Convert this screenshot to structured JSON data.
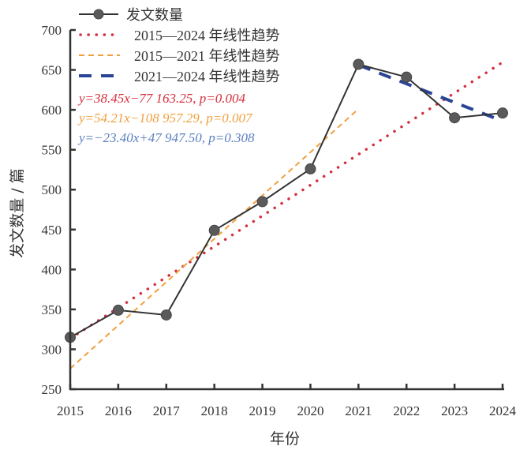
{
  "chart_data": {
    "type": "line",
    "title": "",
    "xlabel": "年份",
    "ylabel": "发文数量 / 篇",
    "ylim": [
      250,
      700
    ],
    "xlim": [
      2015,
      2024
    ],
    "yticks": [
      "250",
      "300",
      "350",
      "400",
      "450",
      "500",
      "550",
      "600",
      "650",
      "700"
    ],
    "xticks": [
      "2015",
      "2016",
      "2017",
      "2018",
      "2019",
      "2020",
      "2021",
      "2022",
      "2023",
      "2024"
    ],
    "grid": false,
    "legend_position": "top-left",
    "x": [
      2015,
      2016,
      2017,
      2018,
      2019,
      2020,
      2021,
      2022,
      2023,
      2024
    ],
    "series": [
      {
        "name": "发文数量",
        "values": [
          315,
          349,
          343,
          449,
          485,
          526,
          657,
          641,
          590,
          596
        ],
        "color": "#333333",
        "marker": "circle"
      }
    ],
    "trendlines": [
      {
        "name": "2015—2024 年线性趋势",
        "slope": 38.45,
        "intercept": -77163.25,
        "range": [
          2015,
          2024
        ],
        "color": "#d62f3e",
        "style": "dotted",
        "equation": "y=38.45x−77 163.25",
        "p": "p=0.004"
      },
      {
        "name": "2015—2021 年线性趋势",
        "slope": 54.21,
        "intercept": -108957.29,
        "range": [
          2015,
          2021
        ],
        "color": "#f0a040",
        "style": "dashed",
        "equation": "y=54.21x−108 957.29",
        "p": "p=0.007"
      },
      {
        "name": "2021—2024 年线性趋势",
        "slope": -23.4,
        "intercept": 47947.5,
        "range": [
          2021,
          2024
        ],
        "color": "#2b4596",
        "style": "longdash",
        "equation": "y=−23.40x+47 947.50",
        "p": "p=0.308"
      }
    ],
    "eq_colors": [
      "#d62f3e",
      "#f0a040",
      "#5b7fc0"
    ]
  }
}
